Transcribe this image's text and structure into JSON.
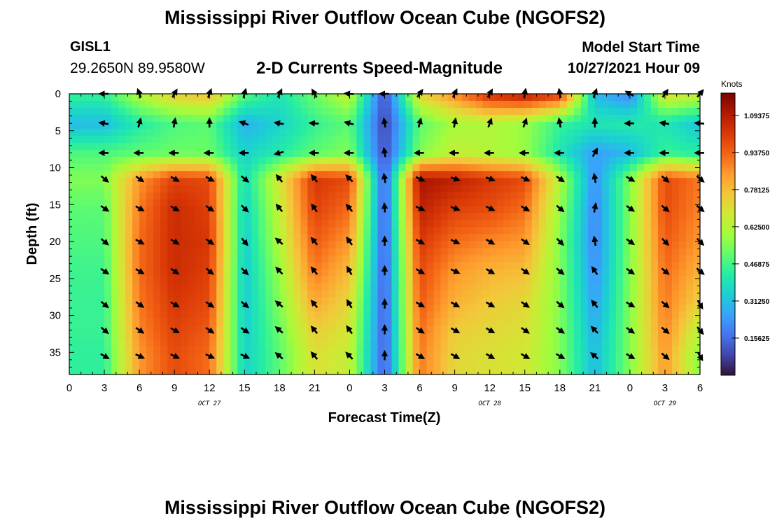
{
  "header": {
    "title": "Mississippi River Outflow Ocean Cube (NGOFS2)",
    "station": "GISL1",
    "coordinates": "29.2650N  89.9580W",
    "subtitle": "2-D Currents Speed-Magnitude",
    "start_label": "Model Start Time",
    "start_value": "10/27/2021 Hour 09"
  },
  "footer": {
    "title": "Mississippi River Outflow Ocean Cube (NGOFS2)"
  },
  "chart_data": {
    "type": "heatmap",
    "xlabel": "Forecast Time(Z)",
    "ylabel": "Depth (ft)",
    "colorbar_label": "Knots",
    "xlim": [
      0,
      54
    ],
    "ylim": [
      0,
      38
    ],
    "y_inverted": true,
    "x_ticks": [
      0,
      3,
      6,
      9,
      12,
      15,
      18,
      21,
      24,
      27,
      30,
      33,
      36,
      39,
      42,
      45,
      48,
      51,
      54
    ],
    "x_tick_labels": [
      "0",
      "3",
      "6",
      "9",
      "12",
      "15",
      "18",
      "21",
      "0",
      "3",
      "6",
      "9",
      "12",
      "15",
      "18",
      "21",
      "0",
      "3",
      "6"
    ],
    "y_ticks": [
      0,
      5,
      10,
      15,
      20,
      25,
      30,
      35
    ],
    "y_tick_labels": [
      "0",
      "5",
      "10",
      "15",
      "20",
      "25",
      "30",
      "35"
    ],
    "date_labels": [
      {
        "x": 12,
        "text": "OCT 27"
      },
      {
        "x": 36,
        "text": "OCT 28"
      },
      {
        "x": 51,
        "text": "OCT 29"
      }
    ],
    "colorbar_range": [
      0,
      1.1875
    ],
    "colorbar_ticks": [
      0.15625,
      0.3125,
      0.46875,
      0.625,
      0.78125,
      0.9375,
      1.09375
    ],
    "colorbar_tick_labels": [
      "0.15625",
      "0.31250",
      "0.46875",
      "0.62500",
      "0.78125",
      "0.93750",
      "1.09375"
    ],
    "colorscale": [
      "#30123b",
      "#4145ab",
      "#4675ed",
      "#39a2fc",
      "#1bcfd4",
      "#24eca6",
      "#61fc6c",
      "#a4fc3b",
      "#d1e834",
      "#f3c63a",
      "#fe9b2d",
      "#f36315",
      "#d93806",
      "#b11901",
      "#7a0402"
    ],
    "vector_times": [
      3,
      6,
      9,
      12,
      15,
      18,
      21,
      24,
      27,
      30,
      33,
      36,
      39,
      42,
      45,
      48,
      51,
      54
    ],
    "vector_depths": [
      0,
      4,
      8,
      11.5,
      15.5,
      20,
      24,
      28.5,
      32,
      35.5
    ],
    "speed_knots": [
      [
        0.45,
        0.62,
        0.74,
        0.78,
        0.5,
        0.4,
        0.52,
        0.65,
        0.1,
        0.72,
        0.88,
        1.05,
        1.1,
        1.02,
        0.3,
        0.2,
        0.7,
        0.66
      ],
      [
        0.3,
        0.42,
        0.48,
        0.5,
        0.28,
        0.35,
        0.45,
        0.5,
        0.08,
        0.5,
        0.6,
        0.62,
        0.58,
        0.45,
        0.4,
        0.42,
        0.4,
        0.32
      ],
      [
        0.48,
        0.5,
        0.52,
        0.52,
        0.35,
        0.42,
        0.5,
        0.55,
        0.1,
        0.55,
        0.65,
        0.62,
        0.58,
        0.4,
        0.25,
        0.3,
        0.45,
        0.42
      ],
      [
        0.55,
        0.85,
        1.0,
        0.98,
        0.38,
        0.68,
        1.02,
        0.98,
        0.12,
        1.12,
        1.08,
        1.02,
        0.98,
        0.62,
        0.22,
        0.55,
        0.98,
        0.9
      ],
      [
        0.5,
        0.9,
        1.05,
        1.0,
        0.35,
        0.65,
        1.0,
        0.92,
        0.12,
        1.08,
        1.0,
        0.98,
        0.92,
        0.58,
        0.2,
        0.55,
        0.98,
        0.88
      ],
      [
        0.48,
        0.92,
        1.05,
        1.02,
        0.34,
        0.62,
        0.95,
        0.85,
        0.12,
        1.02,
        0.92,
        0.88,
        0.85,
        0.55,
        0.2,
        0.55,
        0.95,
        0.85
      ],
      [
        0.46,
        0.92,
        1.05,
        1.0,
        0.33,
        0.58,
        0.9,
        0.78,
        0.12,
        0.98,
        0.85,
        0.8,
        0.78,
        0.55,
        0.22,
        0.55,
        0.92,
        0.8
      ],
      [
        0.45,
        0.9,
        1.02,
        0.98,
        0.33,
        0.55,
        0.82,
        0.72,
        0.12,
        0.95,
        0.8,
        0.75,
        0.72,
        0.55,
        0.25,
        0.55,
        0.9,
        0.72
      ],
      [
        0.45,
        0.88,
        1.0,
        0.95,
        0.34,
        0.52,
        0.75,
        0.68,
        0.12,
        0.92,
        0.75,
        0.72,
        0.7,
        0.55,
        0.28,
        0.55,
        0.88,
        0.62
      ],
      [
        0.44,
        0.85,
        0.98,
        0.92,
        0.35,
        0.5,
        0.7,
        0.65,
        0.12,
        0.9,
        0.72,
        0.7,
        0.68,
        0.55,
        0.3,
        0.55,
        0.85,
        0.55
      ]
    ],
    "direction_deg": [
      [
        180,
        110,
        60,
        70,
        75,
        65,
        120,
        175,
        180,
        55,
        65,
        60,
        80,
        100,
        70,
        150,
        55,
        50
      ],
      [
        170,
        75,
        80,
        90,
        160,
        170,
        175,
        165,
        100,
        75,
        80,
        70,
        70,
        100,
        90,
        180,
        170,
        175
      ],
      [
        180,
        180,
        180,
        180,
        180,
        195,
        180,
        180,
        100,
        180,
        180,
        180,
        180,
        180,
        60,
        180,
        180,
        180
      ],
      [
        -40,
        -35,
        -30,
        -30,
        -40,
        130,
        130,
        135,
        100,
        -25,
        -20,
        -20,
        -25,
        -35,
        100,
        -30,
        -40,
        -40
      ],
      [
        -35,
        -30,
        -30,
        -35,
        -45,
        130,
        125,
        130,
        95,
        -25,
        -20,
        -25,
        -30,
        -40,
        80,
        -35,
        -40,
        -40
      ],
      [
        -40,
        -30,
        -30,
        -35,
        -50,
        140,
        130,
        125,
        90,
        -30,
        -25,
        -30,
        -35,
        -45,
        100,
        -35,
        -45,
        -45
      ],
      [
        -35,
        -30,
        -35,
        -40,
        -45,
        135,
        130,
        120,
        90,
        -30,
        -25,
        -30,
        -35,
        -40,
        125,
        -35,
        -40,
        -40
      ],
      [
        -40,
        -35,
        -30,
        -35,
        -40,
        140,
        130,
        120,
        90,
        -30,
        -30,
        -30,
        -35,
        -40,
        130,
        -30,
        -40,
        -60
      ],
      [
        -40,
        -35,
        -30,
        -35,
        -35,
        140,
        130,
        125,
        90,
        -35,
        -30,
        -30,
        -35,
        -35,
        135,
        -35,
        -40,
        -50
      ],
      [
        -30,
        -25,
        -25,
        -25,
        -25,
        140,
        130,
        135,
        90,
        -30,
        -30,
        -30,
        -30,
        -30,
        140,
        -30,
        -40,
        -60
      ]
    ]
  }
}
